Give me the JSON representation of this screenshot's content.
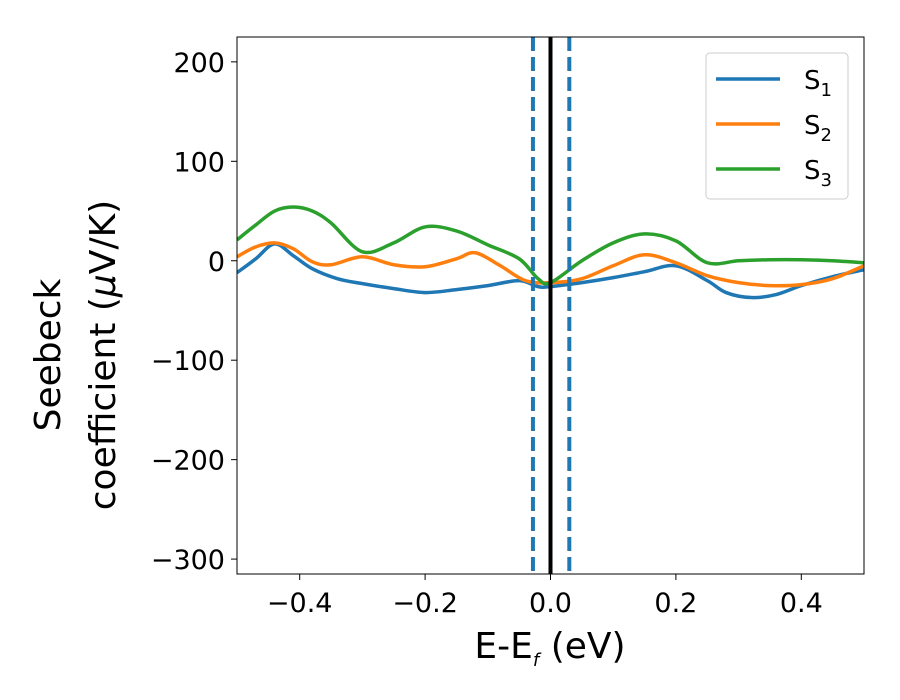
{
  "chart_data": {
    "type": "line",
    "xlabel_main": "E-E",
    "xlabel_sub": "f",
    "xlabel_unit": " (eV)",
    "ylabel_line1": "Seebeck",
    "ylabel_line2_pre": "coefficient  (",
    "ylabel_mu": "μ",
    "ylabel_line2_post": "V/K)",
    "xlim": [
      -0.5,
      0.5
    ],
    "ylim": [
      -315,
      225
    ],
    "xticks": [
      -0.4,
      -0.2,
      0.0,
      0.2,
      0.4
    ],
    "xtick_labels": [
      "−0.4",
      "−0.2",
      "0.0",
      "0.2",
      "0.4"
    ],
    "yticks": [
      -300,
      -200,
      -100,
      0,
      100,
      200
    ],
    "ytick_labels": [
      "−300",
      "−200",
      "−100",
      "0",
      "100",
      "200"
    ],
    "legend_position": "top-right",
    "vlines": [
      {
        "x": 0.0,
        "style": "solid",
        "color": "#000000"
      },
      {
        "x": -0.028,
        "style": "dashed",
        "color": "#1f77b4"
      },
      {
        "x": 0.03,
        "style": "dashed",
        "color": "#1f77b4"
      }
    ],
    "series": [
      {
        "name_main": "S",
        "name_sub": "1",
        "color": "#1f77b4",
        "x": [
          -0.5,
          -0.47,
          -0.44,
          -0.41,
          -0.38,
          -0.34,
          -0.3,
          -0.25,
          -0.2,
          -0.15,
          -0.1,
          -0.05,
          -0.02,
          0.0,
          0.05,
          0.1,
          0.15,
          0.2,
          0.25,
          0.28,
          0.32,
          0.36,
          0.4,
          0.45,
          0.5
        ],
        "y": [
          -12,
          2,
          17,
          5,
          -8,
          -18,
          -23,
          -28,
          -32,
          -29,
          -25,
          -20,
          -26,
          -26,
          -22,
          -17,
          -11,
          -5,
          -20,
          -32,
          -37,
          -34,
          -25,
          -16,
          -9
        ]
      },
      {
        "name_main": "S",
        "name_sub": "2",
        "color": "#ff7f0e",
        "x": [
          -0.5,
          -0.47,
          -0.44,
          -0.41,
          -0.38,
          -0.35,
          -0.3,
          -0.25,
          -0.2,
          -0.15,
          -0.12,
          -0.08,
          -0.04,
          0.0,
          0.05,
          0.1,
          0.15,
          0.2,
          0.25,
          0.3,
          0.35,
          0.4,
          0.45,
          0.5
        ],
        "y": [
          4,
          14,
          18,
          12,
          -1,
          -4,
          4,
          -4,
          -6,
          2,
          8,
          -5,
          -20,
          -22,
          -18,
          -5,
          6,
          -2,
          -15,
          -22,
          -25,
          -24,
          -18,
          -5
        ]
      },
      {
        "name_main": "S",
        "name_sub": "3",
        "color": "#2ca02c",
        "x": [
          -0.5,
          -0.47,
          -0.44,
          -0.41,
          -0.38,
          -0.35,
          -0.3,
          -0.25,
          -0.2,
          -0.15,
          -0.1,
          -0.05,
          -0.02,
          0.0,
          0.05,
          0.1,
          0.15,
          0.2,
          0.25,
          0.3,
          0.35,
          0.4,
          0.45,
          0.5
        ],
        "y": [
          21,
          36,
          50,
          54,
          50,
          38,
          9,
          18,
          34,
          30,
          16,
          2,
          -18,
          -22,
          0,
          18,
          27,
          20,
          -2,
          0,
          1,
          1,
          0,
          -2
        ]
      }
    ]
  }
}
